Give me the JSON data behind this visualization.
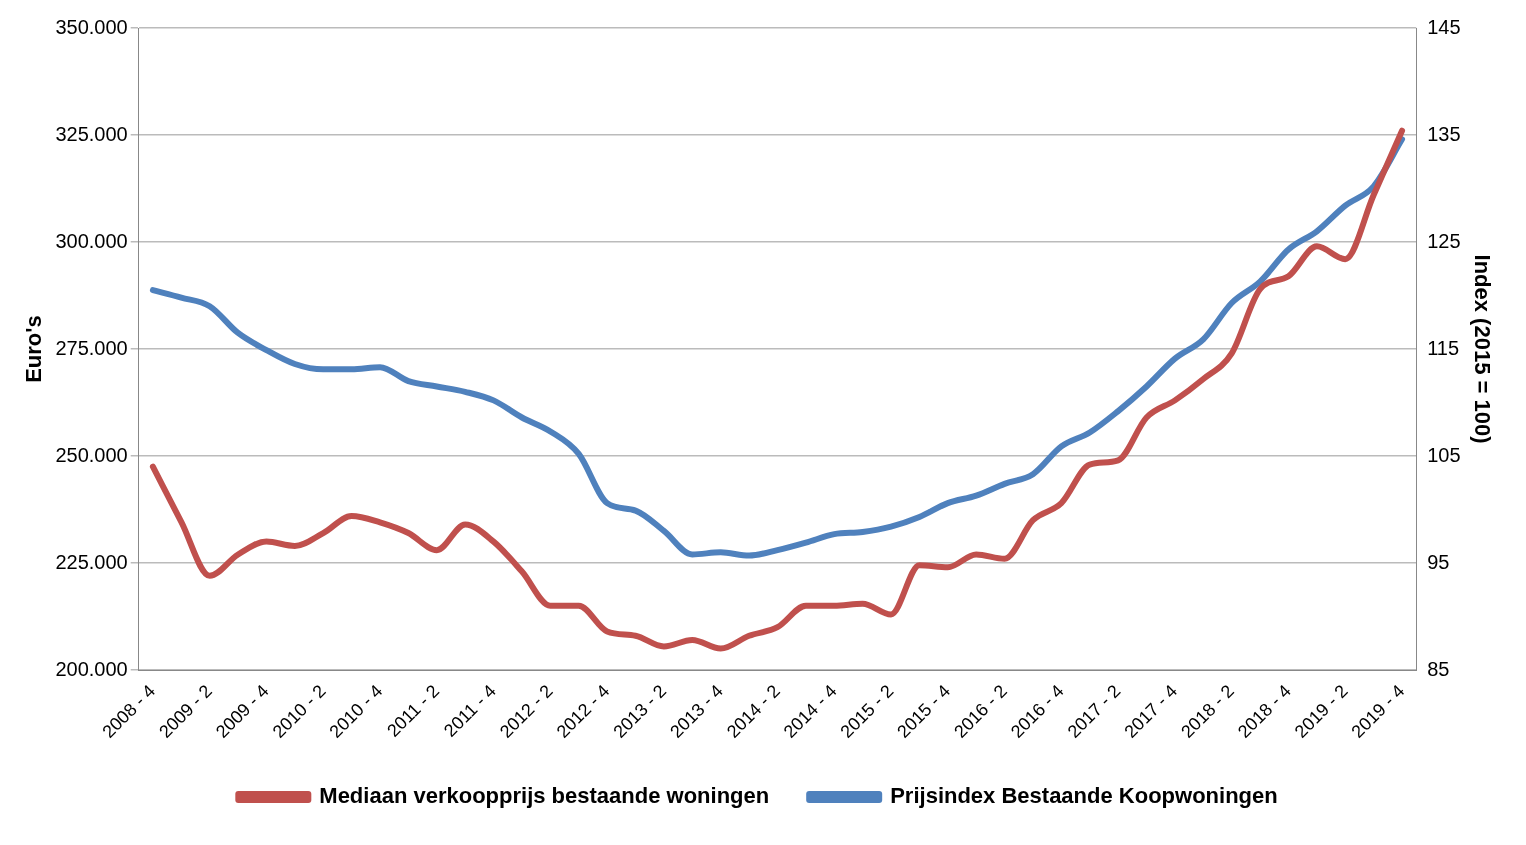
{
  "chart_data": {
    "type": "line",
    "ylabel": "Euro's",
    "y2label": "Index (2015 = 100)",
    "categories": [
      "2008 - 4",
      null,
      "2009 - 2",
      null,
      "2009 - 4",
      null,
      "2010 - 2",
      null,
      "2010 - 4",
      null,
      "2011 - 2",
      null,
      "2011 - 4",
      null,
      "2012 - 2",
      null,
      "2012 - 4",
      null,
      "2013 - 2",
      null,
      "2013 - 4",
      null,
      "2014 - 2",
      null,
      "2014 - 4",
      null,
      "2015 - 2",
      null,
      "2015 - 4",
      null,
      "2016 - 2",
      null,
      "2016 - 4",
      null,
      "2017 - 2",
      null,
      "2017 - 4",
      null,
      "2018 - 2",
      null,
      "2018 - 4",
      null,
      "2019 - 2",
      null,
      "2019 - 4"
    ],
    "series": [
      {
        "name": "Mediaan verkoopprijs bestaande woningen",
        "color": "#c0504d",
        "values": [
          247500,
          234600,
          222000,
          227000,
          230000,
          229000,
          232000,
          236000,
          234500,
          232000,
          228000,
          234000,
          230000,
          223000,
          215000,
          215000,
          209000,
          208000,
          205500,
          207000,
          205000,
          208000,
          210000,
          215000,
          215000,
          215500,
          213000,
          224500,
          224000,
          227000,
          226000,
          235000,
          239000,
          248000,
          249000,
          259000,
          263000,
          268000,
          274000,
          289000,
          292000,
          299000,
          296000,
          311000,
          326000
        ]
      },
      {
        "name": "Prijsindex Bestaande Koopwoningen",
        "color": "#4f81bd",
        "axis": "y2",
        "values": [
          120.5,
          119.8,
          119,
          116.5,
          114.9,
          113.6,
          113.1,
          113.1,
          113.3,
          112,
          111.5,
          111,
          110.2,
          108.6,
          107.3,
          105.2,
          100.6,
          99.9,
          98,
          95.8,
          96,
          95.7,
          96.2,
          96.9,
          97.7,
          97.9,
          98.4,
          99.3,
          100.6,
          101.3,
          102.4,
          103.3,
          105.9,
          107.2,
          109.2,
          111.5,
          114.1,
          115.9,
          119.3,
          121.3,
          124.3,
          126,
          128.4,
          130.2,
          134.6
        ]
      }
    ],
    "ylim": [
      200000,
      350000
    ],
    "yticks": [
      {
        "value": 200000,
        "label": "200.000"
      },
      {
        "value": 225000,
        "label": "225.000"
      },
      {
        "value": 250000,
        "label": "250.000"
      },
      {
        "value": 275000,
        "label": "275.000"
      },
      {
        "value": 300000,
        "label": "300.000"
      },
      {
        "value": 325000,
        "label": "325.000"
      },
      {
        "value": 350000,
        "label": "350.000"
      }
    ],
    "y2lim": [
      85,
      145
    ],
    "y2ticks": [
      85,
      95,
      105,
      115,
      125,
      135,
      145
    ],
    "grid": "y",
    "legend": "bottom",
    "marker": "none",
    "line_style": "solid"
  }
}
